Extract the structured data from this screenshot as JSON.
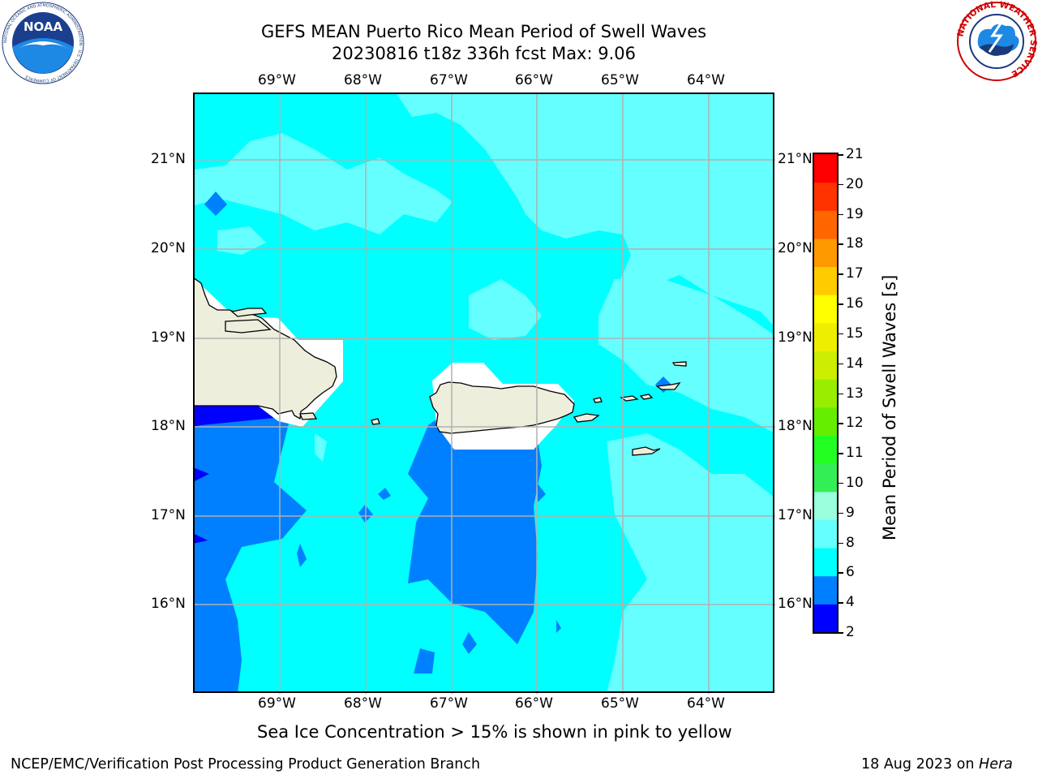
{
  "title": {
    "line1": "GEFS MEAN Puerto Rico Mean Period of Swell Waves",
    "line2": "20230816 t18z 336h fcst   Max: 9.06"
  },
  "logos": {
    "left": {
      "name": "noaa-logo",
      "text": "NOAA",
      "ring_text": "NATIONAL OCEANIC AND ATMOSPHERIC ADMINISTRATION · U.S. DEPARTMENT OF COMMERCE"
    },
    "right": {
      "name": "nws-logo",
      "ring_text": "NATIONAL WEATHER SERVICE"
    }
  },
  "map": {
    "lon_labels": [
      "69°W",
      "68°W",
      "67°W",
      "66°W",
      "65°W",
      "64°W"
    ],
    "lat_labels": [
      "21°N",
      "20°N",
      "19°N",
      "18°N",
      "17°N",
      "16°N"
    ],
    "colors": {
      "ocean_light": "#66ffff",
      "ocean_mid": "#00ffff",
      "ocean_deep": "#0080ff",
      "ocean_darkest": "#0000ff",
      "land": "#eeeedc",
      "gridline": "#b0b0b0"
    }
  },
  "colorbar": {
    "title": "Mean Period of Swell Waves [s]",
    "levels": [
      "2",
      "4",
      "6",
      "8",
      "9",
      "10",
      "11",
      "12",
      "13",
      "14",
      "15",
      "16",
      "17",
      "18",
      "19",
      "20",
      "21"
    ],
    "colors": [
      "#0000ff",
      "#0080ff",
      "#00ffff",
      "#66ffff",
      "#99ffdd",
      "#33ee55",
      "#22ff22",
      "#66ee00",
      "#99ee00",
      "#ccee00",
      "#eeee00",
      "#ffff00",
      "#ffcc00",
      "#ff9900",
      "#ff6600",
      "#ff3300",
      "#ff0000"
    ]
  },
  "caption": "Sea Ice Concentration > 15% is shown in pink to yellow",
  "footer": {
    "left": "NCEP/EMC/Verification Post Processing Product Generation Branch",
    "date": "18 Aug 2023 on ",
    "host": "Hera"
  }
}
